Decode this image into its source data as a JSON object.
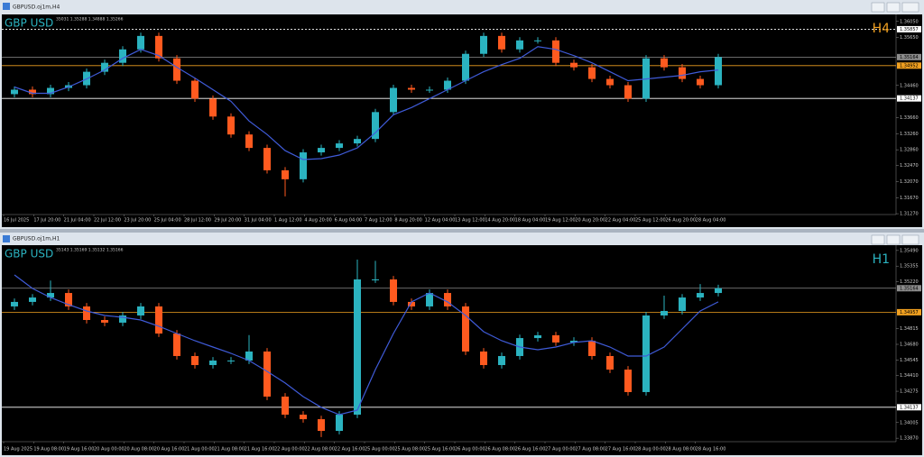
{
  "chart_data": [
    {
      "type": "candlestick",
      "window_title": "GBPUSD.oj1m,H4",
      "symbol_label": "GBP USD",
      "timeframe_label": "H4",
      "timeframe_color": "#f0a020",
      "info_text": "35031 1.35288 1.34888 1.35266",
      "up_color": "#2bb3c0",
      "down_color": "#ff5a1f",
      "x_labels": [
        "16 Jul 2025",
        "17 Jul 20:00",
        "21 Jul 04:00",
        "22 Jul 12:00",
        "23 Jul 20:00",
        "25 Jul 04:00",
        "28 Jul 12:00",
        "29 Jul 20:00",
        "31 Jul 04:00",
        "1 Aug 12:00",
        "4 Aug 20:00",
        "6 Aug 04:00",
        "7 Aug 12:00",
        "8 Aug 20:00",
        "12 Aug 04:00",
        "13 Aug 12:00",
        "14 Aug 20:00",
        "18 Aug 04:00",
        "19 Aug 12:00",
        "20 Aug 20:00",
        "22 Aug 04:00",
        "25 Aug 12:00",
        "26 Aug 20:00",
        "28 Aug 04:00"
      ],
      "open": [
        1.34243,
        1.34354,
        1.34243,
        1.34398,
        1.34465,
        1.34799,
        1.35022,
        1.35356,
        1.3569,
        1.35133,
        1.34577,
        1.34131,
        1.33686,
        1.3324,
        1.32906,
        1.3235,
        1.32127,
        1.32795,
        1.32906,
        1.33018,
        1.33129,
        1.33797,
        1.34398,
        1.34354,
        1.34354,
        1.34577,
        1.35245,
        1.3569,
        1.35356,
        1.35579,
        1.35579,
        1.35022,
        1.34911,
        1.34621,
        1.34465,
        1.34131,
        1.35133,
        1.34911,
        1.34621,
        1.34465
      ],
      "high": [
        1.34434,
        1.34434,
        1.34478,
        1.34545,
        1.34879,
        1.35102,
        1.35436,
        1.3577,
        1.3577,
        1.35213,
        1.34657,
        1.34211,
        1.33766,
        1.3332,
        1.32986,
        1.3243,
        1.32875,
        1.32986,
        1.33098,
        1.33209,
        1.33877,
        1.34478,
        1.34478,
        1.34434,
        1.34657,
        1.35325,
        1.3577,
        1.3577,
        1.35659,
        1.35659,
        1.35659,
        1.35102,
        1.34991,
        1.34701,
        1.34545,
        1.35213,
        1.35213,
        1.34991,
        1.34701,
        1.35244
      ],
      "low": [
        1.34163,
        1.34163,
        1.34163,
        1.34318,
        1.34385,
        1.34719,
        1.34942,
        1.35276,
        1.35053,
        1.34497,
        1.34051,
        1.33606,
        1.3316,
        1.32826,
        1.3227,
        1.317,
        1.32047,
        1.32715,
        1.32826,
        1.32938,
        1.33049,
        1.33717,
        1.34274,
        1.34274,
        1.34274,
        1.34497,
        1.35165,
        1.35276,
        1.35276,
        1.35499,
        1.34942,
        1.34831,
        1.34541,
        1.34385,
        1.34051,
        1.34051,
        1.34831,
        1.34541,
        1.34385,
        1.34385
      ],
      "close": [
        1.34354,
        1.34243,
        1.34398,
        1.34465,
        1.34799,
        1.35022,
        1.35356,
        1.3569,
        1.35133,
        1.34577,
        1.34131,
        1.33686,
        1.3324,
        1.32906,
        1.3235,
        1.32127,
        1.32795,
        1.32906,
        1.33018,
        1.33129,
        1.33797,
        1.34398,
        1.34354,
        1.34354,
        1.34577,
        1.35245,
        1.3569,
        1.35356,
        1.35579,
        1.35579,
        1.35022,
        1.34911,
        1.34621,
        1.34465,
        1.34131,
        1.35133,
        1.34911,
        1.34621,
        1.34465,
        1.35164
      ],
      "ma": {
        "color": "#3f5bd8",
        "values": [
          1.34421,
          1.34265,
          1.34265,
          1.34421,
          1.34621,
          1.34844,
          1.35133,
          1.35356,
          1.352,
          1.34911,
          1.34643,
          1.34354,
          1.34064,
          1.33575,
          1.3324,
          1.32839,
          1.32617,
          1.32639,
          1.32728,
          1.32906,
          1.33285,
          1.3373,
          1.33909,
          1.34131,
          1.34354,
          1.34577,
          1.34799,
          1.34977,
          1.35133,
          1.35423,
          1.35356,
          1.352,
          1.35022,
          1.34799,
          1.34577,
          1.34621,
          1.34666,
          1.3471,
          1.34799,
          1.34844
        ]
      },
      "levels": [
        {
          "value": 1.35857,
          "color": "#ffffff",
          "style": "dotted"
        },
        {
          "value": 1.35164,
          "color": "#8c8c8c",
          "style": "solid"
        },
        {
          "value": 1.34952,
          "color": "#f0a020",
          "style": "solid"
        },
        {
          "value": 1.34137,
          "color": "#ffffff",
          "style": "solid"
        }
      ],
      "ylim": [
        1.3125,
        1.3618
      ],
      "yticks": [
        {
          "value": 1.3605,
          "label": "1.36050"
        },
        {
          "value": 1.3565,
          "label": "1.35650"
        },
        {
          "value": 1.3446,
          "label": "1.34460"
        },
        {
          "value": 1.3366,
          "label": "1.33660"
        },
        {
          "value": 1.3326,
          "label": "1.33260"
        },
        {
          "value": 1.3286,
          "label": "1.32860"
        },
        {
          "value": 1.3247,
          "label": "1.32470"
        },
        {
          "value": 1.3207,
          "label": "1.32070"
        },
        {
          "value": 1.3167,
          "label": "1.31670"
        },
        {
          "value": 1.3127,
          "label": "1.31270"
        }
      ]
    },
    {
      "type": "candlestick",
      "window_title": "GBPUSD.oj1m,H1",
      "symbol_label": "GBP USD",
      "timeframe_label": "H1",
      "timeframe_color": "#2bb3c0",
      "info_text": "35143 1.35169 1.35132 1.35166",
      "up_color": "#2bb3c0",
      "down_color": "#ff5a1f",
      "x_labels": [
        "19 Aug 2025",
        "19 Aug 08:00",
        "19 Aug 16:00",
        "20 Aug 00:00",
        "20 Aug 08:00",
        "20 Aug 16:00",
        "21 Aug 00:00",
        "21 Aug 08:00",
        "21 Aug 16:00",
        "22 Aug 00:00",
        "22 Aug 08:00",
        "22 Aug 16:00",
        "25 Aug 00:00",
        "25 Aug 08:00",
        "25 Aug 16:00",
        "26 Aug 00:00",
        "26 Aug 08:00",
        "26 Aug 16:00",
        "27 Aug 00:00",
        "27 Aug 08:00",
        "27 Aug 16:00",
        "28 Aug 00:00",
        "28 Aug 08:00",
        "28 Aug 16:00"
      ],
      "open": [
        1.35007,
        1.35046,
        1.35084,
        1.35123,
        1.35007,
        1.3489,
        1.34867,
        1.34929,
        1.35007,
        1.34773,
        1.34579,
        1.34501,
        1.3454,
        1.3454,
        1.34618,
        1.34229,
        1.34073,
        1.34034,
        1.33933,
        1.34073,
        1.3524,
        1.3524,
        1.35046,
        1.35007,
        1.35123,
        1.35007,
        1.34618,
        1.34501,
        1.34579,
        1.34734,
        1.34758,
        1.34696,
        1.34711,
        1.34579,
        1.34462,
        1.34268,
        1.34929,
        1.34968,
        1.35084,
        1.35123
      ],
      "high": [
        1.35076,
        1.35114,
        1.3523,
        1.35153,
        1.35037,
        1.3492,
        1.34959,
        1.35037,
        1.35037,
        1.34803,
        1.34609,
        1.3457,
        1.3457,
        1.3476,
        1.34648,
        1.34259,
        1.34103,
        1.34064,
        1.34103,
        1.35411,
        1.354,
        1.3527,
        1.35076,
        1.35153,
        1.35153,
        1.35037,
        1.34648,
        1.34609,
        1.34764,
        1.34788,
        1.34788,
        1.34741,
        1.34741,
        1.34609,
        1.34492,
        1.34959,
        1.351,
        1.35114,
        1.352,
        1.35194
      ],
      "low": [
        1.34977,
        1.35016,
        1.35054,
        1.34977,
        1.3486,
        1.34837,
        1.34837,
        1.34899,
        1.34743,
        1.34549,
        1.34471,
        1.34471,
        1.3451,
        1.3451,
        1.34199,
        1.34043,
        1.34004,
        1.3388,
        1.33903,
        1.34043,
        1.3521,
        1.35016,
        1.34977,
        1.34977,
        1.34977,
        1.34588,
        1.34471,
        1.34471,
        1.34549,
        1.34704,
        1.34666,
        1.34666,
        1.34549,
        1.34432,
        1.34238,
        1.34238,
        1.34899,
        1.34938,
        1.35054,
        1.35093
      ],
      "close": [
        1.35046,
        1.35084,
        1.35123,
        1.35007,
        1.3489,
        1.34867,
        1.34929,
        1.35007,
        1.34773,
        1.34579,
        1.34501,
        1.3454,
        1.3454,
        1.34618,
        1.34229,
        1.34073,
        1.34034,
        1.33933,
        1.34073,
        1.3524,
        1.3524,
        1.35046,
        1.35007,
        1.35123,
        1.35007,
        1.34618,
        1.34501,
        1.34579,
        1.34734,
        1.34758,
        1.34696,
        1.34711,
        1.34579,
        1.34462,
        1.34268,
        1.34929,
        1.34968,
        1.35084,
        1.35123,
        1.35164
      ],
      "ma": {
        "color": "#3f5bd8",
        "values": [
          1.35279,
          1.35162,
          1.35084,
          1.35022,
          1.34968,
          1.34929,
          1.34913,
          1.3489,
          1.34836,
          1.34773,
          1.34711,
          1.34657,
          1.34602,
          1.3454,
          1.34447,
          1.34346,
          1.34229,
          1.34136,
          1.34073,
          1.34112,
          1.34462,
          1.34773,
          1.35046,
          1.35123,
          1.35046,
          1.34929,
          1.34789,
          1.34711,
          1.34657,
          1.34633,
          1.34657,
          1.34696,
          1.34711,
          1.34657,
          1.34579,
          1.34579,
          1.34657,
          1.34812,
          1.34968,
          1.35046
        ]
      },
      "levels": [
        {
          "value": 1.35164,
          "color": "#8c8c8c",
          "style": "solid"
        },
        {
          "value": 1.34957,
          "color": "#f0a020",
          "style": "solid"
        },
        {
          "value": 1.34137,
          "color": "#ffffff",
          "style": "solid"
        }
      ],
      "ylim": [
        1.3384,
        1.3552
      ],
      "yticks": [
        {
          "value": 1.3549,
          "label": "1.35490"
        },
        1.35355,
        {
          "value": 1.3522,
          "label": "1.35220"
        },
        1.34815,
        {
          "value": 1.3468,
          "label": "1.34680"
        },
        1.34545,
        {
          "value": 1.3441,
          "label": "1.34410"
        },
        1.34275,
        1.34005,
        {
          "value": 1.3387,
          "label": "1.33870"
        }
      ]
    }
  ]
}
